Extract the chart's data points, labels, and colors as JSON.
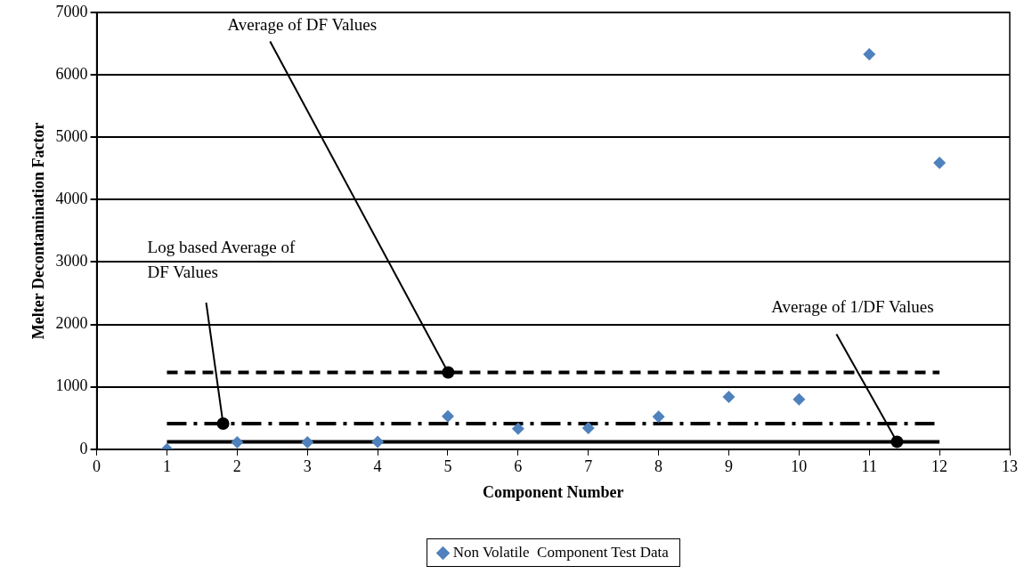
{
  "chart_data": {
    "type": "scatter",
    "xlabel": "Component Number",
    "ylabel": "Melter Decontamination Factor",
    "x": [
      1,
      2,
      3,
      4,
      5,
      6,
      7,
      8,
      9,
      10,
      11,
      12
    ],
    "series": [
      {
        "name": "Non Volatile  Component Test Data",
        "color": "#4f81bd",
        "values": [
          0,
          110,
          110,
          120,
          530,
          330,
          340,
          520,
          840,
          800,
          6330,
          4590
        ]
      }
    ],
    "xlim": [
      0,
      13
    ],
    "xticks": [
      0,
      1,
      2,
      3,
      4,
      5,
      6,
      7,
      8,
      9,
      10,
      11,
      12,
      13
    ],
    "ylim": [
      0,
      7000
    ],
    "yticks": [
      0,
      1000,
      2000,
      3000,
      4000,
      5000,
      6000,
      7000
    ],
    "ref_lines": [
      {
        "axis": "y",
        "value": 1230,
        "color": "#000000",
        "line_style": "dashed",
        "label": "Average of DF Values"
      },
      {
        "axis": "y",
        "value": 410,
        "color": "#000000",
        "line_style": "dashdot",
        "label": "Log based Average of DF Values"
      },
      {
        "axis": "y",
        "value": 120,
        "color": "#000000",
        "line_style": "solid",
        "label": "Average of 1/DF Values"
      }
    ],
    "grid": "y",
    "marker": "diamond",
    "legend": "bottom"
  }
}
